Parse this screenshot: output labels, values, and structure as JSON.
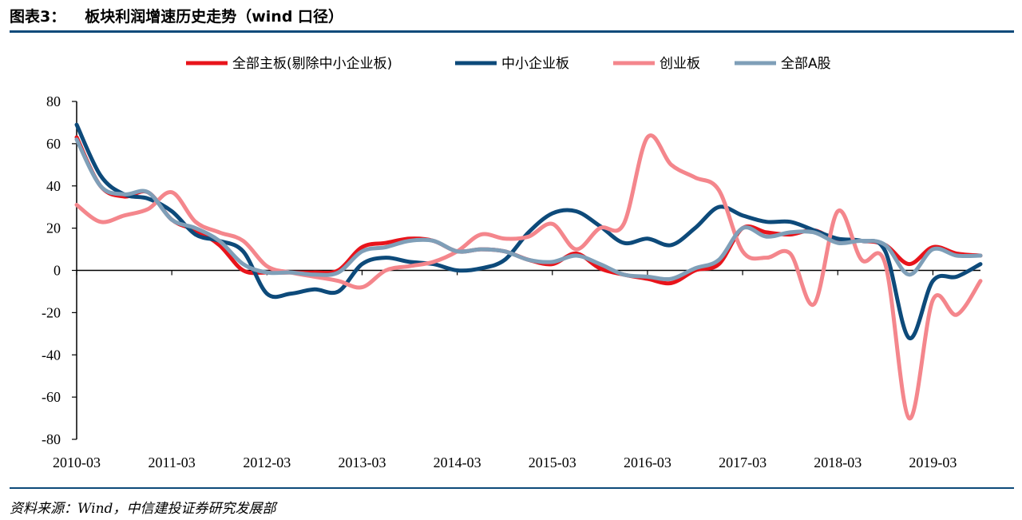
{
  "header": {
    "label": "图表3：",
    "title": "板块利润增速历史走势（wind 口径）"
  },
  "footer": {
    "source": "资料来源：Wind，中信建投证券研究发展部"
  },
  "chart_data": {
    "type": "line",
    "title": "板块利润增速历史走势（wind 口径）",
    "xlabel": "",
    "ylabel": "",
    "ylim": [
      -80,
      80
    ],
    "yticks": [
      80,
      60,
      40,
      20,
      0,
      -20,
      -40,
      -60,
      -80
    ],
    "xticks": [
      "2010-03",
      "2011-03",
      "2012-03",
      "2013-03",
      "2014-03",
      "2015-03",
      "2016-03",
      "2017-03",
      "2018-03",
      "2019-03"
    ],
    "x": [
      "2010-03",
      "2010-06",
      "2010-09",
      "2010-12",
      "2011-03",
      "2011-06",
      "2011-09",
      "2011-12",
      "2012-03",
      "2012-06",
      "2012-09",
      "2012-12",
      "2013-03",
      "2013-06",
      "2013-09",
      "2013-12",
      "2014-03",
      "2014-06",
      "2014-09",
      "2014-12",
      "2015-03",
      "2015-06",
      "2015-09",
      "2015-12",
      "2016-03",
      "2016-06",
      "2016-09",
      "2016-12",
      "2017-03",
      "2017-06",
      "2017-09",
      "2017-12",
      "2018-03",
      "2018-06",
      "2018-09",
      "2018-12",
      "2019-03",
      "2019-06",
      "2019-09"
    ],
    "legend_position": "top-center",
    "grid": false,
    "series": [
      {
        "name": "全部主板(剔除中小企业板)",
        "color": "#e8141b",
        "values": [
          63,
          40,
          35,
          37,
          24,
          19,
          12,
          0,
          -1,
          -1,
          -1,
          0,
          11,
          13,
          15,
          14,
          9,
          10,
          9,
          5,
          3,
          8,
          1,
          -2,
          -4,
          -6,
          0,
          3,
          20,
          18,
          17,
          19,
          14,
          14,
          12,
          3,
          11,
          8,
          7
        ]
      },
      {
        "name": "中小企业板",
        "color": "#0d4a7a",
        "values": [
          69,
          45,
          36,
          34,
          28,
          17,
          14,
          9,
          -11,
          -11,
          -9,
          -10,
          3,
          6,
          4,
          3,
          0,
          1,
          5,
          18,
          27,
          28,
          21,
          13,
          15,
          12,
          20,
          30,
          26,
          23,
          23,
          19,
          15,
          14,
          9,
          -32,
          -5,
          -3,
          3
        ]
      },
      {
        "name": "创业板",
        "color": "#f4868c",
        "values": [
          31,
          23,
          26,
          29,
          37,
          23,
          18,
          14,
          2,
          -1,
          -3,
          -5,
          -8,
          0,
          2,
          4,
          9,
          17,
          15,
          16,
          22,
          10,
          20,
          22,
          63,
          50,
          44,
          38,
          9,
          6,
          8,
          -16,
          28,
          5,
          3,
          -70,
          -14,
          -21,
          -5
        ]
      },
      {
        "name": "全部A股",
        "color": "#7f9fb8",
        "values": [
          62,
          40,
          36,
          37,
          24,
          20,
          14,
          3,
          -1,
          -1,
          -2,
          -1,
          9,
          11,
          14,
          14,
          9,
          10,
          9,
          5,
          4,
          7,
          3,
          -2,
          -3,
          -4,
          1,
          5,
          20,
          16,
          18,
          18,
          13,
          14,
          12,
          -2,
          10,
          7,
          7
        ]
      }
    ]
  }
}
